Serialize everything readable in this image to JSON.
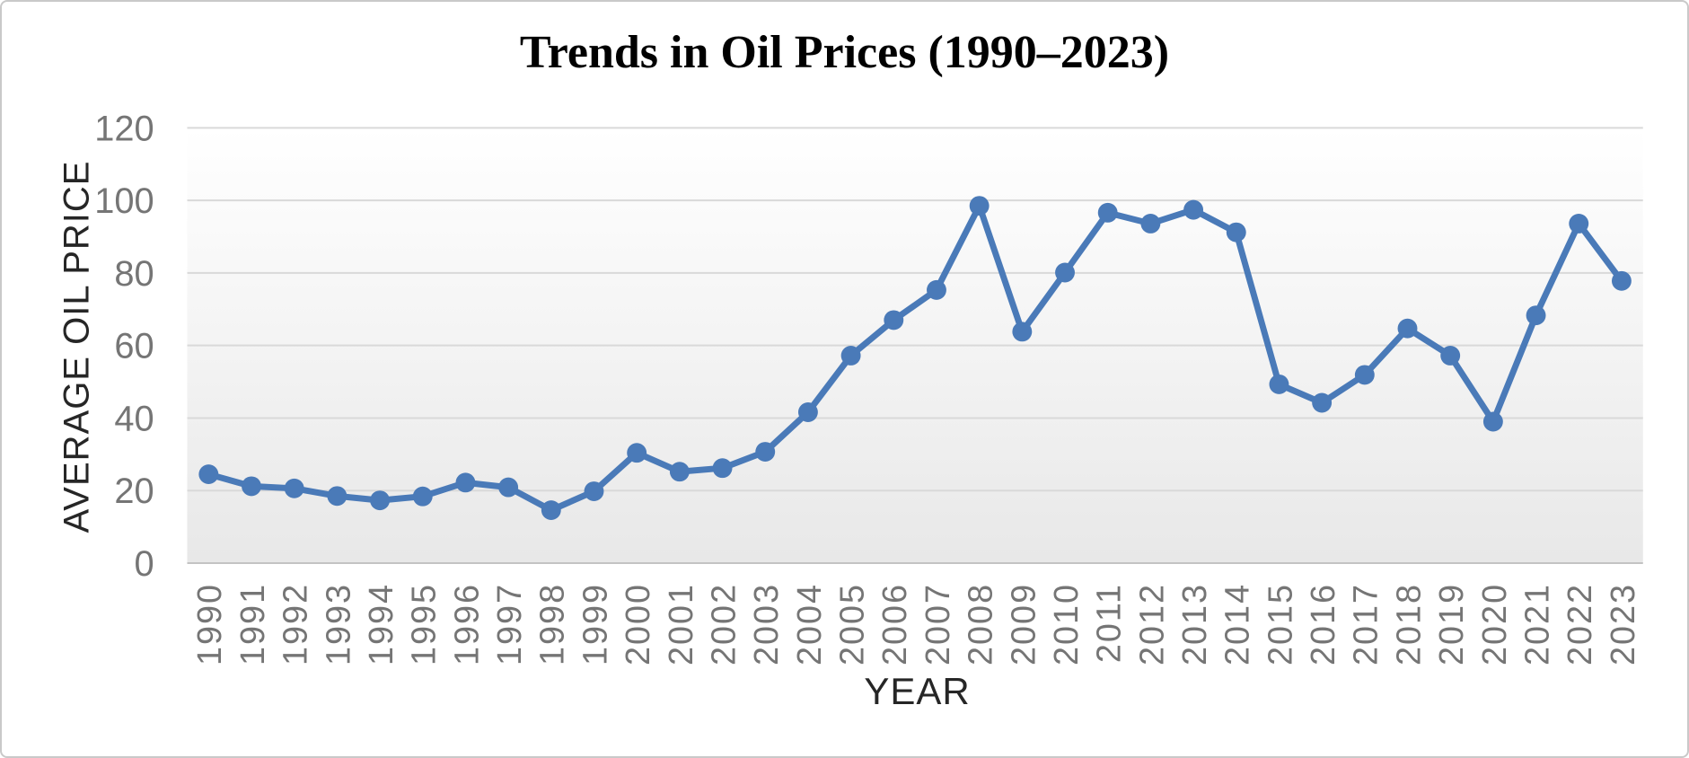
{
  "chart_data": {
    "type": "line",
    "title": "Trends in Oil Prices (1990–2023)",
    "xlabel": "YEAR",
    "ylabel": "AVERAGE OIL PRICE",
    "categories": [
      "1990",
      "1991",
      "1992",
      "1993",
      "1994",
      "1995",
      "1996",
      "1997",
      "1998",
      "1999",
      "2000",
      "2001",
      "2002",
      "2003",
      "2004",
      "2005",
      "2006",
      "2007",
      "2008",
      "2009",
      "2010",
      "2011",
      "2012",
      "2013",
      "2014",
      "2015",
      "2016",
      "2017",
      "2018",
      "2019",
      "2020",
      "2021",
      "2022",
      "2023"
    ],
    "series": [
      {
        "name": "Average Oil Price",
        "values": [
          24.5,
          21.2,
          20.6,
          18.5,
          17.3,
          18.4,
          22.2,
          20.9,
          14.6,
          19.8,
          30.4,
          25.2,
          26.2,
          30.7,
          41.6,
          57.2,
          67.0,
          75.3,
          98.5,
          63.8,
          80.1,
          96.6,
          93.6,
          97.4,
          91.2,
          49.3,
          44.2,
          51.9,
          64.7,
          57.2,
          39.0,
          68.3,
          93.6,
          77.8
        ]
      }
    ],
    "ylim": [
      0,
      120
    ],
    "yticks": [
      0,
      20,
      40,
      60,
      80,
      100,
      120
    ],
    "grid": true,
    "legend": "none",
    "marker": "circle",
    "colors": {
      "line": "#4a7ab8",
      "marker": "#4a7ab8",
      "gridline": "#d9d9d9",
      "axis_line": "#c3c3c3",
      "tick_label": "#757575",
      "axis_title": "#262626",
      "title": "#000000",
      "plot_bg_top": "#ffffff",
      "plot_bg_bottom": "#e8e8e8",
      "chart_border": "#c9c9c9"
    }
  }
}
